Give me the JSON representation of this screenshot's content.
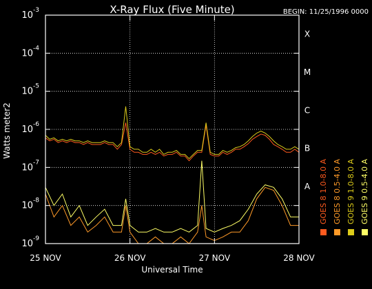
{
  "chart_data": {
    "type": "line",
    "title": "X-Ray Flux (Five Minute)",
    "begin_label": "BEGIN: 11/25/1996 0000",
    "xlabel": "Universal Time",
    "ylabel": "Watts meter2",
    "y_scale": "log",
    "ylim": [
      1e-09,
      0.001
    ],
    "xlim_days": [
      0,
      3
    ],
    "x_ticks": [
      {
        "label": "25 NOV",
        "day": 0
      },
      {
        "label": "26 NOV",
        "day": 1
      },
      {
        "label": "27 NOV",
        "day": 2
      },
      {
        "label": "28 NOV",
        "day": 3
      }
    ],
    "y_ticks": [
      {
        "label": "10",
        "exp": "-9",
        "value": 1e-09
      },
      {
        "label": "10",
        "exp": "-8",
        "value": 1e-08
      },
      {
        "label": "10",
        "exp": "-7",
        "value": 1e-07
      },
      {
        "label": "10",
        "exp": "-6",
        "value": 1e-06
      },
      {
        "label": "10",
        "exp": "-5",
        "value": 1e-05
      },
      {
        "label": "10",
        "exp": "-4",
        "value": 0.0001
      },
      {
        "label": "10",
        "exp": "-3",
        "value": 0.001
      }
    ],
    "flare_classes": [
      {
        "label": "A",
        "value": 1e-08
      },
      {
        "label": "B",
        "value": 1e-07
      },
      {
        "label": "C",
        "value": 1e-06
      },
      {
        "label": "M",
        "value": 1e-05
      },
      {
        "label": "X",
        "value": 0.0001
      }
    ],
    "grid": true,
    "legend_position": "right, vertical",
    "series": [
      {
        "name": "GOES 8 1.0-8.0 A",
        "color": "#ff5a1e",
        "x": [
          0.0,
          0.05,
          0.1,
          0.15,
          0.2,
          0.25,
          0.3,
          0.35,
          0.4,
          0.45,
          0.5,
          0.55,
          0.6,
          0.65,
          0.7,
          0.75,
          0.8,
          0.85,
          0.9,
          0.95,
          1.0,
          1.05,
          1.1,
          1.15,
          1.2,
          1.25,
          1.3,
          1.35,
          1.4,
          1.45,
          1.5,
          1.55,
          1.6,
          1.65,
          1.7,
          1.75,
          1.8,
          1.85,
          1.9,
          1.95,
          2.0,
          2.05,
          2.1,
          2.15,
          2.2,
          2.25,
          2.3,
          2.35,
          2.4,
          2.45,
          2.5,
          2.55,
          2.6,
          2.65,
          2.7,
          2.75,
          2.8,
          2.85,
          2.9,
          2.95,
          3.0
        ],
        "y": [
          6e-07,
          5e-07,
          5.5e-07,
          4.5e-07,
          5e-07,
          4.5e-07,
          5e-07,
          4.5e-07,
          4.5e-07,
          4e-07,
          4.5e-07,
          4e-07,
          4e-07,
          4e-07,
          4.5e-07,
          4e-07,
          4e-07,
          3e-07,
          4e-07,
          1.5e-06,
          3e-07,
          2.5e-07,
          2.5e-07,
          2.2e-07,
          2.2e-07,
          2.5e-07,
          2.2e-07,
          2.5e-07,
          2e-07,
          2.2e-07,
          2.2e-07,
          2.5e-07,
          2e-07,
          2e-07,
          1.5e-07,
          2e-07,
          2.5e-07,
          2.5e-07,
          1.3e-06,
          2.2e-07,
          2e-07,
          2e-07,
          2.5e-07,
          2.2e-07,
          2.5e-07,
          3e-07,
          3e-07,
          3.5e-07,
          4.2e-07,
          5.5e-07,
          6.5e-07,
          7.5e-07,
          7e-07,
          5.5e-07,
          4e-07,
          3.5e-07,
          3e-07,
          2.5e-07,
          2.5e-07,
          3e-07,
          2.5e-07
        ]
      },
      {
        "name": "GOES 8 0.5-4.0 A",
        "color": "#ff9a28",
        "x": [
          0.0,
          0.1,
          0.2,
          0.3,
          0.4,
          0.5,
          0.6,
          0.7,
          0.8,
          0.9,
          0.95,
          1.0,
          1.1,
          1.2,
          1.3,
          1.4,
          1.5,
          1.6,
          1.7,
          1.8,
          1.85,
          1.9,
          2.0,
          2.1,
          2.2,
          2.3,
          2.4,
          2.5,
          2.6,
          2.7,
          2.8,
          2.9,
          3.0
        ],
        "y": [
          2e-08,
          5e-09,
          1e-08,
          3e-09,
          5e-09,
          2e-09,
          3e-09,
          5e-09,
          2e-09,
          2e-09,
          1e-08,
          2e-09,
          1e-09,
          1e-09,
          1.5e-09,
          1e-09,
          1e-09,
          1.5e-09,
          1e-09,
          2e-09,
          1e-08,
          1.5e-09,
          1.2e-09,
          1.5e-09,
          2e-09,
          2e-09,
          4e-09,
          1.5e-08,
          3e-08,
          2.5e-08,
          1e-08,
          3e-09,
          3e-09
        ]
      },
      {
        "name": "GOES 9 1.0-8.0 A",
        "color": "#ddcc1a",
        "x": [
          0.0,
          0.05,
          0.1,
          0.15,
          0.2,
          0.25,
          0.3,
          0.35,
          0.4,
          0.45,
          0.5,
          0.55,
          0.6,
          0.65,
          0.7,
          0.75,
          0.8,
          0.85,
          0.9,
          0.95,
          1.0,
          1.05,
          1.1,
          1.15,
          1.2,
          1.25,
          1.3,
          1.35,
          1.4,
          1.45,
          1.5,
          1.55,
          1.6,
          1.65,
          1.7,
          1.75,
          1.8,
          1.85,
          1.9,
          1.95,
          2.0,
          2.05,
          2.1,
          2.15,
          2.2,
          2.25,
          2.3,
          2.35,
          2.4,
          2.45,
          2.5,
          2.55,
          2.6,
          2.65,
          2.7,
          2.75,
          2.8,
          2.85,
          2.9,
          2.95,
          3.0
        ],
        "y": [
          7e-07,
          5.5e-07,
          6e-07,
          5e-07,
          5.5e-07,
          5e-07,
          5.5e-07,
          5e-07,
          5e-07,
          4.5e-07,
          5e-07,
          4.5e-07,
          4.5e-07,
          4.5e-07,
          5e-07,
          4.5e-07,
          4.5e-07,
          3.5e-07,
          4.5e-07,
          4e-06,
          3.5e-07,
          3e-07,
          3e-07,
          2.5e-07,
          2.5e-07,
          3e-07,
          2.5e-07,
          3e-07,
          2.2e-07,
          2.5e-07,
          2.5e-07,
          2.8e-07,
          2.2e-07,
          2.2e-07,
          1.7e-07,
          2.2e-07,
          2.8e-07,
          2.8e-07,
          1.5e-06,
          2.5e-07,
          2.2e-07,
          2.2e-07,
          2.8e-07,
          2.5e-07,
          2.8e-07,
          3.3e-07,
          3.5e-07,
          4e-07,
          5e-07,
          6.5e-07,
          8e-07,
          9e-07,
          8e-07,
          6.5e-07,
          5e-07,
          4e-07,
          3.5e-07,
          3e-07,
          3e-07,
          3.5e-07,
          3e-07
        ]
      },
      {
        "name": "GOES 9 0.5-4.0 A",
        "color": "#ffff66",
        "x": [
          0.0,
          0.1,
          0.2,
          0.3,
          0.4,
          0.5,
          0.6,
          0.7,
          0.8,
          0.9,
          0.95,
          1.0,
          1.1,
          1.2,
          1.3,
          1.4,
          1.5,
          1.6,
          1.7,
          1.8,
          1.85,
          1.9,
          2.0,
          2.1,
          2.2,
          2.3,
          2.4,
          2.5,
          2.6,
          2.7,
          2.8,
          2.9,
          3.0
        ],
        "y": [
          3e-08,
          1e-08,
          2e-08,
          5e-09,
          1e-08,
          3e-09,
          5e-09,
          8e-09,
          3e-09,
          3e-09,
          1.5e-08,
          3e-09,
          2e-09,
          2e-09,
          2.5e-09,
          2e-09,
          2e-09,
          2.5e-09,
          2e-09,
          3e-09,
          1.5e-07,
          2.5e-09,
          2e-09,
          2.5e-09,
          3e-09,
          4e-09,
          8e-09,
          2e-08,
          3.5e-08,
          3e-08,
          1.5e-08,
          5e-09,
          5e-09
        ]
      }
    ]
  }
}
